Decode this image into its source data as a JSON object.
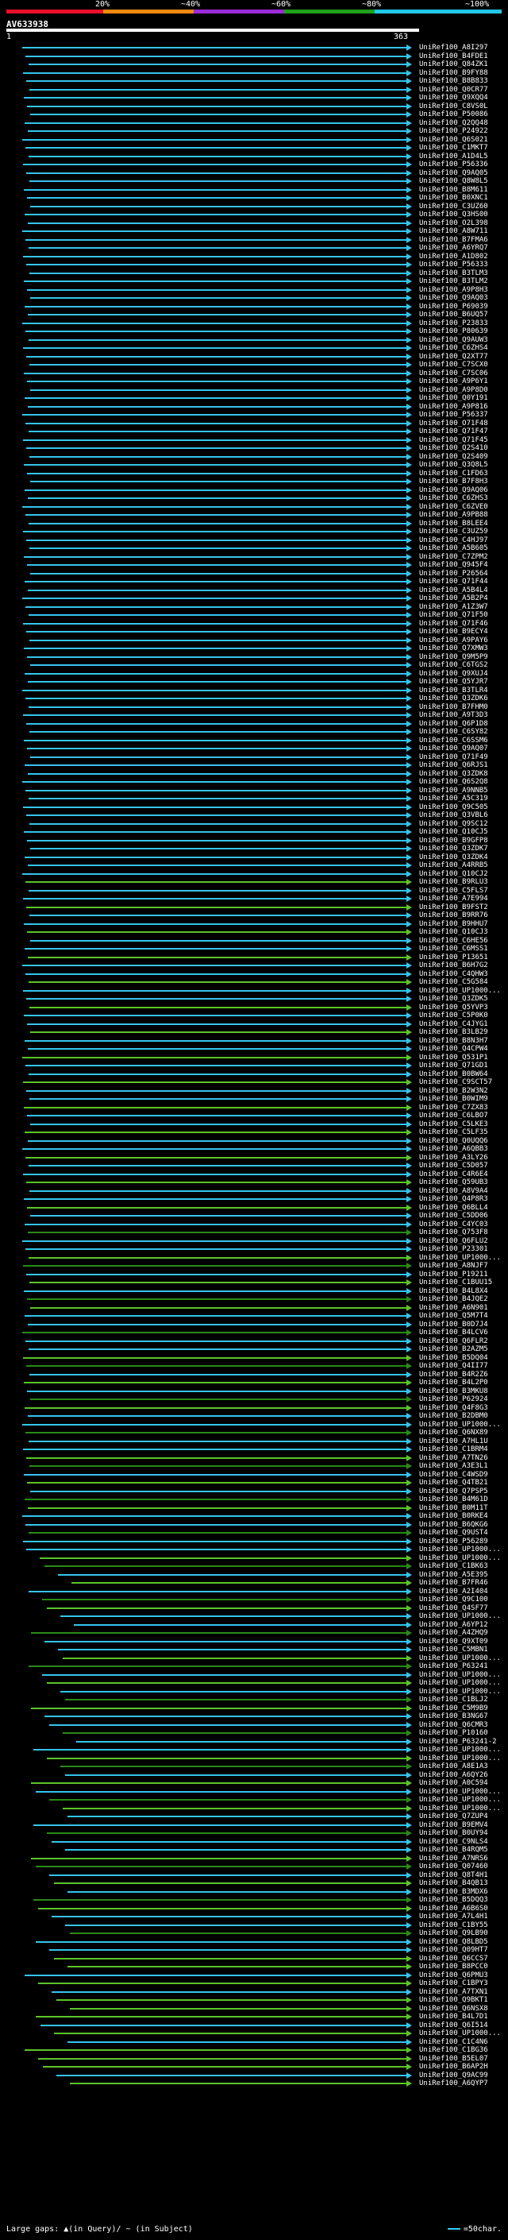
{
  "scale": {
    "ticks": [
      "20%",
      "~40%",
      "~60%",
      "~80%",
      "~100%"
    ],
    "colors": [
      "#e8102a",
      "#ee8a10",
      "#9a2bd6",
      "#1fa01a",
      "#22c8e8"
    ]
  },
  "query": {
    "id": "AV633938",
    "start": "1",
    "end": "363"
  },
  "hit_colors": {
    "cyan": "#35c4ec",
    "green": "#5cc42a",
    "dark_green": "#2a8a18"
  },
  "hits": [
    "UniRef100_A8I297",
    "UniRef100_B4FDE1",
    "UniRef100_Q84ZK1",
    "UniRef100_B9FY88",
    "UniRef100_B8B833",
    "UniRef100_Q0CR77",
    "UniRef100_Q9XQQ4",
    "UniRef100_C8VS0L",
    "UniRef100_P50086",
    "UniRef100_Q2QQ48",
    "UniRef100_P24922",
    "UniRef100_Q6S021",
    "UniRef100_C1MKT7",
    "UniRef100_A1D4L5",
    "UniRef100_P56336",
    "UniRef100_Q9AQ05",
    "UniRef100_Q8W8L5",
    "UniRef100_B8M611",
    "UniRef100_B0XNC1",
    "UniRef100_C3UZ60",
    "UniRef100_Q3HS00",
    "UniRef100_O2L398",
    "UniRef100_A8W711",
    "UniRef100_B7FMA6",
    "UniRef100_A6YRQ7",
    "UniRef100_A1D802",
    "UniRef100_P56333",
    "UniRef100_B3TLM3",
    "UniRef100_B3TLM2",
    "UniRef100_A9P8H3",
    "UniRef100_Q9AQ03",
    "UniRef100_P69039",
    "UniRef100_B6UQ57",
    "UniRef100_P23833",
    "UniRef100_P80639",
    "UniRef100_Q9AUW3",
    "UniRef100_C6ZHS4",
    "UniRef100_Q2XT77",
    "UniRef100_C7SCX0",
    "UniRef100_C7SC06",
    "UniRef100_A9P6Y1",
    "UniRef100_A9P8D0",
    "UniRef100_Q0Y191",
    "UniRef100_A9P816",
    "UniRef100_P56337",
    "UniRef100_O71F48",
    "UniRef100_Q71F47",
    "UniRef100_Q71F45",
    "UniRef100_Q2S410",
    "UniRef100_Q2S409",
    "UniRef100_Q3Q8L5",
    "UniRef100_C1FD63",
    "UniRef100_B7F8H3",
    "UniRef100_Q9AQ06",
    "UniRef100_C6ZHS3",
    "UniRef100_C6ZVE0",
    "UniRef100_A9PB88",
    "UniRef100_B8LEE4",
    "UniRef100_C3UZ59",
    "UniRef100_C4HJ97",
    "UniRef100_A5B605",
    "UniRef100_C7ZPM2",
    "UniRef100_Q945F4",
    "UniRef100_P26564",
    "UniRef100_Q71F44",
    "UniRef100_A5B4L4",
    "UniRef100_A5B2P4",
    "UniRef100_A1Z3W7",
    "UniRef100_Q71F50",
    "UniRef100_Q71F46",
    "UniRef100_B9ECY4",
    "UniRef100_A9PAY6",
    "UniRef100_Q7XMW3",
    "UniRef100_Q9M5P9",
    "UniRef100_C6TGS2",
    "UniRef100_Q9XUJ4",
    "UniRef100_Q5YJR7",
    "UniRef100_B3TLR4",
    "UniRef100_Q3ZDK6",
    "UniRef100_B7FHM0",
    "UniRef100_A9T3D3",
    "UniRef100_Q6P1D8",
    "UniRef100_C6SY82",
    "UniRef100_C6SSM6",
    "UniRef100_Q9AQ07",
    "UniRef100_Q71F49",
    "UniRef100_Q6RJS1",
    "UniRef100_Q3ZDK8",
    "UniRef100_Q6S2Q8",
    "UniRef100_A9NNB5",
    "UniRef100_A5C319",
    "UniRef100_Q9C505",
    "UniRef100_Q3VBL6",
    "UniRef100_Q9SC12",
    "UniRef100_Q10CJ5",
    "UniRef100_B9GFP8",
    "UniRef100_Q3ZDK7",
    "UniRef100_Q3ZDK4",
    "UniRef100_A4RRB5",
    "UniRef100_Q10CJ2",
    "UniRef100_B9RLU3",
    "UniRef100_C5FLS7",
    "UniRef100_A7E994",
    "UniRef100_B9FST2",
    "UniRef100_B9RR76",
    "UniRef100_B9HHU7",
    "UniRef100_Q10CJ3",
    "UniRef100_C6HE56",
    "UniRef100_C6MSS1",
    "UniRef100_P13651",
    "UniRef100_B6H7G2",
    "UniRef100_C4QHW3",
    "UniRef100_C5G584",
    "UniRef100_UP1000...",
    "UniRef100_Q3ZDK5",
    "UniRef100_Q5YVP3",
    "UniRef100_C5P0K0",
    "UniRef100_C4JYG1",
    "UniRef100_B3LB29",
    "UniRef100_B8N3H7",
    "UniRef100_Q4CPW4",
    "UniRef100_Q531P1",
    "UniRef100_Q71GD1",
    "UniRef100_B0BW64",
    "UniRef100_C9SCT57",
    "UniRef100_B2W3N2",
    "UniRef100_B0WIM9",
    "UniRef100_C7ZX83",
    "UniRef100_C6LBO7",
    "UniRef100_C5LKE3",
    "UniRef100_C5LF35",
    "UniRef100_Q0UQQ6",
    "UniRef100_A6QBB3",
    "UniRef100_A3LY26",
    "UniRef100_C5D057",
    "UniRef100_C4R6E4",
    "UniRef100_Q59UB3",
    "UniRef100_A8V9A4",
    "UniRef100_Q4P8R3",
    "UniRef100_Q6BLL4",
    "UniRef100_C5DD06",
    "UniRef100_C4YC03",
    "UniRef100_Q753F8",
    "UniRef100_Q6FLU2",
    "UniRef100_P23301",
    "UniRef100_UP1000...",
    "UniRef100_A8NJF7",
    "UniRef100_P19211",
    "UniRef100_C1BUU15",
    "UniRef100_B4L8X4",
    "UniRef100_B4JQE2",
    "UniRef100_A6N901",
    "UniRef100_Q5M7T4",
    "UniRef100_B0D7J4",
    "UniRef100_B4LCV6",
    "UniRef100_Q6FLR2",
    "UniRef100_B2AZM5",
    "UniRef100_B5DQ04",
    "UniRef100_Q4II77",
    "UniRef100_B4R2Z6",
    "UniRef100_B4L2P0",
    "UniRef100_B3MKU8",
    "UniRef100_P62924",
    "UniRef100_Q4F8G3",
    "UniRef100_B2DBM0",
    "UniRef100_UP1000...",
    "UniRef100_Q6NX89",
    "UniRef100_A7HL1U",
    "UniRef100_C1BRM4",
    "UniRef100_A7TN26",
    "UniRef100_A3E3L1",
    "UniRef100_C4WSD9",
    "UniRef100_Q4TB21",
    "UniRef100_Q7PSP5",
    "UniRef100_B4M61D",
    "UniRef100_B0M11T",
    "UniRef100_B0RKE4",
    "UniRef100_B6QKG6",
    "UniRef100_Q9UST4",
    "UniRef100_P56289",
    "UniRef100_UP1000...",
    "UniRef100_UP1000...",
    "UniRef100_C1BK63",
    "UniRef100_A5E395",
    "UniRef100_B7FR46",
    "UniRef100_A2I404",
    "UniRef100_Q9C100",
    "UniRef100_Q4SF77",
    "UniRef100_UP1000...",
    "UniRef100_A6YP12",
    "UniRef100_A4ZHQ9",
    "UniRef100_Q9XT09",
    "UniRef100_C5MBN1",
    "UniRef100_UP1000...",
    "UniRef100_P63241",
    "UniRef100_UP1000...",
    "UniRef100_UP1000...",
    "UniRef100_UP1000...",
    "UniRef100_C1BLJ2",
    "UniRef100_C5M9B9",
    "UniRef100_B3NG67",
    "UniRef100_Q6CMR3",
    "UniRef100_P10160",
    "UniRef100_P63241-2",
    "UniRef100_UP1000...",
    "UniRef100_UP1000...",
    "UniRef100_A8E1A3",
    "UniRef100_A6QY26",
    "UniRef100_A0C594",
    "UniRef100_UP1000...",
    "UniRef100_UP1000...",
    "UniRef100_UP1000...",
    "UniRef100_Q7ZUP4",
    "UniRef100_B9EMV4",
    "UniRef100_B0UY94",
    "UniRef100_C9NLS4",
    "UniRef100_B4RQM5",
    "UniRef100_A7NRS6",
    "UniRef100_Q07460",
    "UniRef100_Q8T4H1",
    "UniRef100_B4QB13",
    "UniRef100_B3MDX6",
    "UniRef100_B5DQQ3",
    "UniRef100_A6B6S0",
    "UniRef100_A7L4H1",
    "UniRef100_C1BY55",
    "UniRef100_Q9LB90",
    "UniRef100_Q8LBD5",
    "UniRef100_Q09HT7",
    "UniRef100_Q6CCS7",
    "UniRef100_B8PCC0",
    "UniRef100_Q6PMU3",
    "UniRef100_C1BPY3",
    "UniRef100_A7TXN1",
    "UniRef100_Q9BKT1",
    "UniRef100_Q6NSX8",
    "UniRef100_B4L7D1",
    "UniRef100_Q6I514",
    "UniRef100_UP1000...",
    "UniRef100_C1C4N6",
    "UniRef100_C1BG36",
    "UniRef100_B5EL07",
    "UniRef100_B6AP2H",
    "UniRef100_Q9AC99",
    "UniRef100_A6QYP7"
  ],
  "legend": {
    "left": "Large gaps: ▲(in Query)/ ~ (in Subject)",
    "right": "=50char."
  }
}
